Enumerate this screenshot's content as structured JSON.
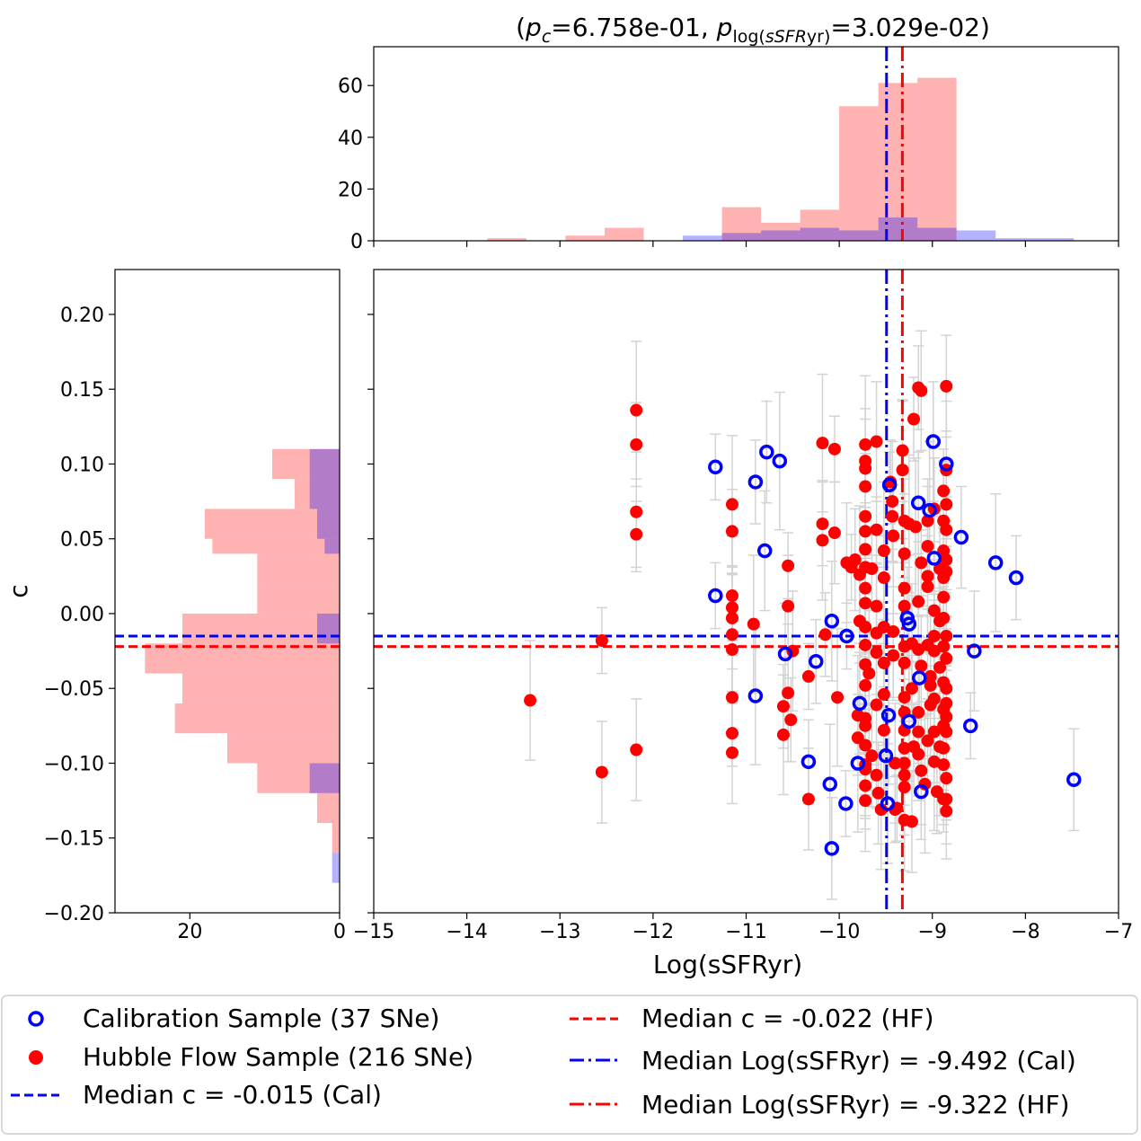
{
  "chart_data": {
    "type": "scatter",
    "title": {
      "prefix": "(",
      "p": "p",
      "sub_c": "c",
      "c_value": "=6.758e-01, ",
      "sub_log": "log(",
      "sub_ssfr": "sSFR",
      "sub_yr": "yr)",
      "log_value": "=3.029e-02)"
    },
    "xlabel": "Log(sSFRyr)",
    "ylabel": "c",
    "xlim": [
      -15,
      -7
    ],
    "ylim": [
      -0.2,
      0.23
    ],
    "xticks": [
      -15,
      -14,
      -13,
      -12,
      -11,
      -10,
      -9,
      -8,
      -7
    ],
    "xtick_labels": [
      "−15",
      "−14",
      "−13",
      "−12",
      "−11",
      "−10",
      "−9",
      "−8",
      "−7"
    ],
    "yticks": [
      -0.2,
      -0.15,
      -0.1,
      -0.05,
      0.0,
      0.05,
      0.1,
      0.15,
      0.2
    ],
    "ytick_labels": [
      "−0.20",
      "−0.15",
      "−0.10",
      "−0.05",
      "0.00",
      "0.05",
      "0.10",
      "0.15",
      "0.20"
    ],
    "top_hist": {
      "ylim": [
        0,
        75
      ],
      "yticks": [
        0,
        20,
        40,
        60
      ],
      "ytick_labels": [
        "0",
        "20",
        "40",
        "60"
      ],
      "bin_edges": [
        -14.2,
        -13.78,
        -13.36,
        -12.94,
        -12.52,
        -12.1,
        -11.68,
        -11.26,
        -10.84,
        -10.42,
        -10.0,
        -9.58,
        -9.16,
        -8.74,
        -8.32,
        -7.9,
        -7.48
      ],
      "hf_counts": [
        0,
        1,
        0,
        2,
        5,
        0,
        0,
        13,
        7,
        12,
        52,
        61,
        63,
        0,
        0,
        0
      ],
      "cal_counts": [
        0,
        0,
        0,
        0,
        0,
        0,
        2,
        3,
        4,
        5,
        4,
        9,
        5,
        4,
        1,
        1
      ]
    },
    "left_hist": {
      "xlim": [
        30,
        0
      ],
      "xticks": [
        20,
        0
      ],
      "xtick_labels": [
        "20",
        "0"
      ],
      "bin_edges": [
        -0.2,
        -0.18,
        -0.16,
        -0.14,
        -0.12,
        -0.1,
        -0.08,
        -0.06,
        -0.04,
        -0.02,
        0.0,
        0.02,
        0.04,
        0.05,
        0.07,
        0.09,
        0.11,
        0.13,
        0.15,
        0.17
      ],
      "hf_counts": [
        0,
        0,
        1,
        3,
        11,
        15,
        22,
        21,
        26,
        21,
        11,
        11,
        17,
        18,
        6,
        9,
        0,
        0,
        0
      ],
      "hf_counts_exact": null,
      "cal_counts": [
        0,
        1,
        0,
        0,
        4,
        0,
        0,
        0,
        0,
        3,
        0,
        0,
        2,
        3,
        4,
        4,
        0,
        0,
        0
      ]
    },
    "medians": {
      "c_cal": -0.015,
      "c_hf": -0.022,
      "ssfr_cal": -9.492,
      "ssfr_hf": -9.322
    },
    "series": [
      {
        "name": "Calibration Sample (37 SNe)",
        "marker": "open-circle",
        "color": "#0000ff",
        "points": [
          [
            -11.33,
            0.098
          ],
          [
            -10.78,
            0.108
          ],
          [
            -10.64,
            0.102
          ],
          [
            -10.9,
            0.088
          ],
          [
            -10.8,
            0.042
          ],
          [
            -11.33,
            0.012
          ],
          [
            -10.58,
            -0.027
          ],
          [
            -10.9,
            -0.055
          ],
          [
            -10.25,
            -0.032
          ],
          [
            -10.08,
            -0.005
          ],
          [
            -9.92,
            -0.015
          ],
          [
            -9.78,
            -0.06
          ],
          [
            -9.8,
            -0.1
          ],
          [
            -10.33,
            -0.099
          ],
          [
            -10.1,
            -0.114
          ],
          [
            -9.93,
            -0.127
          ],
          [
            -10.08,
            -0.157
          ],
          [
            -9.47,
            -0.068
          ],
          [
            -9.5,
            -0.095
          ],
          [
            -9.48,
            -0.127
          ],
          [
            -9.46,
            0.086
          ],
          [
            -9.15,
            0.074
          ],
          [
            -9.03,
            0.069
          ],
          [
            -8.98,
            0.037
          ],
          [
            -8.99,
            0.115
          ],
          [
            -8.85,
            0.1
          ],
          [
            -9.27,
            -0.003
          ],
          [
            -9.25,
            -0.007
          ],
          [
            -9.14,
            -0.043
          ],
          [
            -9.25,
            -0.072
          ],
          [
            -9.12,
            -0.119
          ],
          [
            -8.69,
            0.051
          ],
          [
            -8.32,
            0.034
          ],
          [
            -8.1,
            0.024
          ],
          [
            -8.55,
            -0.025
          ],
          [
            -8.59,
            -0.075
          ],
          [
            -7.48,
            -0.111
          ]
        ]
      },
      {
        "name": "Hubble Flow Sample (216 SNe)",
        "marker": "filled-circle",
        "color": "#ff0000",
        "points": [
          [
            -13.32,
            -0.058
          ],
          [
            -12.55,
            -0.018
          ],
          [
            -12.55,
            -0.106
          ],
          [
            -12.18,
            0.136
          ],
          [
            -12.18,
            0.113
          ],
          [
            -12.18,
            0.068
          ],
          [
            -12.18,
            0.053
          ],
          [
            -12.18,
            -0.091
          ],
          [
            -11.15,
            0.073
          ],
          [
            -11.15,
            0.055
          ],
          [
            -11.15,
            0.012
          ],
          [
            -11.15,
            0.004
          ],
          [
            -11.15,
            -0.003
          ],
          [
            -11.15,
            -0.014
          ],
          [
            -11.15,
            -0.024
          ],
          [
            -11.15,
            -0.056
          ],
          [
            -11.15,
            -0.08
          ],
          [
            -11.15,
            -0.093
          ],
          [
            -10.92,
            -0.007
          ],
          [
            -10.6,
            -0.062
          ],
          [
            -10.6,
            -0.081
          ],
          [
            -10.55,
            0.032
          ],
          [
            -10.55,
            0.005
          ],
          [
            -10.55,
            -0.053
          ],
          [
            -10.52,
            -0.071
          ],
          [
            -10.5,
            -0.025
          ],
          [
            -10.33,
            -0.042
          ],
          [
            -10.33,
            -0.124
          ],
          [
            -10.18,
            0.114
          ],
          [
            -10.18,
            0.06
          ],
          [
            -10.18,
            0.049
          ],
          [
            -10.05,
            0.11
          ],
          [
            -10.05,
            0.054
          ],
          [
            -10.02,
            -0.056
          ],
          [
            -10.15,
            -0.014
          ],
          [
            -9.92,
            0.034
          ],
          [
            -9.87,
            0.031
          ],
          [
            -9.83,
            0.036
          ],
          [
            -9.78,
            0.026
          ],
          [
            -9.78,
            -0.005
          ],
          [
            -9.8,
            -0.068
          ],
          [
            -9.8,
            -0.083
          ],
          [
            -9.72,
            -0.101
          ],
          [
            -9.72,
            0.113
          ],
          [
            -9.72,
            0.102
          ],
          [
            -9.72,
            0.097
          ],
          [
            -9.72,
            0.085
          ],
          [
            -9.72,
            0.065
          ],
          [
            -9.72,
            0.055
          ],
          [
            -9.72,
            0.043
          ],
          [
            -9.72,
            0.031
          ],
          [
            -9.72,
            0.017
          ],
          [
            -9.72,
            0.007
          ],
          [
            -9.72,
            -0.009
          ],
          [
            -9.72,
            -0.021
          ],
          [
            -9.72,
            -0.034
          ],
          [
            -9.72,
            -0.048
          ],
          [
            -9.72,
            -0.07
          ],
          [
            -9.72,
            -0.075
          ],
          [
            -9.72,
            -0.088
          ],
          [
            -9.72,
            -0.104
          ],
          [
            -9.72,
            -0.115
          ],
          [
            -9.72,
            -0.125
          ],
          [
            -9.68,
            -0.04
          ],
          [
            -9.65,
            0.03
          ],
          [
            -9.6,
            0.115
          ],
          [
            -9.6,
            0.056
          ],
          [
            -9.6,
            0.005
          ],
          [
            -9.6,
            -0.013
          ],
          [
            -9.6,
            -0.026
          ],
          [
            -9.6,
            -0.061
          ],
          [
            -9.6,
            -0.108
          ],
          [
            -9.58,
            -0.12
          ],
          [
            -9.52,
            0.042
          ],
          [
            -9.52,
            0.024
          ],
          [
            -9.52,
            -0.009
          ],
          [
            -9.52,
            -0.033
          ],
          [
            -9.52,
            -0.054
          ],
          [
            -9.52,
            -0.078
          ],
          [
            -9.45,
            0.088
          ],
          [
            -9.43,
            0.075
          ],
          [
            -9.43,
            0.065
          ],
          [
            -9.42,
            0.052
          ],
          [
            -9.42,
            -0.012
          ],
          [
            -9.42,
            -0.028
          ],
          [
            -9.4,
            -0.1
          ],
          [
            -9.38,
            -0.13
          ],
          [
            -9.32,
            0.109
          ],
          [
            -9.32,
            0.096
          ],
          [
            -9.3,
            0.062
          ],
          [
            -9.3,
            0.04
          ],
          [
            -9.3,
            0.017
          ],
          [
            -9.3,
            0.005
          ],
          [
            -9.3,
            -0.022
          ],
          [
            -9.3,
            -0.033
          ],
          [
            -9.3,
            -0.056
          ],
          [
            -9.3,
            -0.066
          ],
          [
            -9.3,
            -0.078
          ],
          [
            -9.3,
            -0.09
          ],
          [
            -9.3,
            -0.1
          ],
          [
            -9.3,
            -0.108
          ],
          [
            -9.3,
            -0.116
          ],
          [
            -9.3,
            -0.138
          ],
          [
            -9.25,
            0.06
          ],
          [
            -9.2,
            0.13
          ],
          [
            -9.22,
            -0.02
          ],
          [
            -9.22,
            -0.05
          ],
          [
            -9.22,
            -0.139
          ],
          [
            -9.18,
            0.058
          ],
          [
            -9.15,
            0.151
          ],
          [
            -9.15,
            0.008
          ],
          [
            -9.15,
            -0.024
          ],
          [
            -9.15,
            -0.066
          ],
          [
            -9.15,
            -0.079
          ],
          [
            -9.15,
            -0.094
          ],
          [
            -9.12,
            0.149
          ],
          [
            -9.12,
            0.034
          ],
          [
            -9.12,
            -0.035
          ],
          [
            -9.12,
            -0.105
          ],
          [
            -9.05,
            0.062
          ],
          [
            -9.05,
            0.045
          ],
          [
            -9.05,
            0.025
          ],
          [
            -9.05,
            0.018
          ],
          [
            -9.05,
            -0.021
          ],
          [
            -9.05,
            -0.085
          ],
          [
            -9.02,
            -0.042
          ],
          [
            -9.02,
            -0.048
          ],
          [
            -8.98,
            0.07
          ],
          [
            -8.98,
            0.002
          ],
          [
            -8.98,
            -0.015
          ],
          [
            -8.98,
            -0.025
          ],
          [
            -8.98,
            -0.057
          ],
          [
            -8.98,
            -0.079
          ],
          [
            -8.98,
            -0.099
          ],
          [
            -8.95,
            -0.119
          ],
          [
            -8.92,
            0.03
          ],
          [
            -8.92,
            -0.005
          ],
          [
            -8.92,
            -0.036
          ],
          [
            -8.92,
            -0.089
          ],
          [
            -8.88,
            0.082
          ],
          [
            -8.88,
            0.062
          ],
          [
            -8.88,
            0.042
          ],
          [
            -8.88,
            0.024
          ],
          [
            -8.88,
            0.011
          ],
          [
            -8.88,
            -0.003
          ],
          [
            -8.88,
            -0.022
          ],
          [
            -8.88,
            -0.046
          ],
          [
            -8.88,
            -0.064
          ],
          [
            -8.88,
            -0.075
          ],
          [
            -8.88,
            -0.09
          ],
          [
            -8.88,
            -0.101
          ],
          [
            -8.88,
            -0.124
          ],
          [
            -8.85,
            0.152
          ],
          [
            -8.85,
            0.096
          ],
          [
            -8.85,
            0.073
          ],
          [
            -8.85,
            0.056
          ],
          [
            -8.85,
            0.036
          ],
          [
            -8.85,
            0.028
          ],
          [
            -8.85,
            -0.015
          ],
          [
            -8.85,
            -0.03
          ],
          [
            -8.85,
            -0.05
          ],
          [
            -8.85,
            -0.06
          ],
          [
            -8.85,
            -0.069
          ],
          [
            -8.85,
            -0.079
          ],
          [
            -8.85,
            -0.11
          ],
          [
            -8.85,
            -0.124
          ],
          [
            -8.85,
            -0.132
          ],
          [
            -9.02,
            -0.061
          ],
          [
            -9.08,
            -0.114
          ],
          [
            -9.2,
            -0.089
          ],
          [
            -9.55,
            -0.131
          ],
          [
            -9.4,
            -0.131
          ],
          [
            -9.65,
            -0.095
          ]
        ]
      }
    ],
    "legend": {
      "placement": "bottom",
      "entries": [
        {
          "label": "Calibration Sample (37 SNe)",
          "style": "open-circle",
          "color": "#0000ff"
        },
        {
          "label": "Hubble Flow Sample (216 SNe)",
          "style": "filled-circle",
          "color": "#ff0000"
        },
        {
          "label": "Median c = -0.015 (Cal)",
          "style": "dashed",
          "color": "#0000ff"
        },
        {
          "label": "Median c = -0.022 (HF)",
          "style": "dashed",
          "color": "#ff0000"
        },
        {
          "label": "Median Log(sSFRyr) = -9.492 (Cal)",
          "style": "dashdot",
          "color": "#0000ff"
        },
        {
          "label": "Median Log(sSFRyr) = -9.322 (HF)",
          "style": "dashdot",
          "color": "#ff0000"
        }
      ]
    },
    "colors": {
      "cal": "#0000ff",
      "hf": "#ff0000",
      "hf_hist": "#ffb3b3",
      "cal_hist": "#b3b3ff",
      "errorbar": "#d3d3d3"
    }
  }
}
